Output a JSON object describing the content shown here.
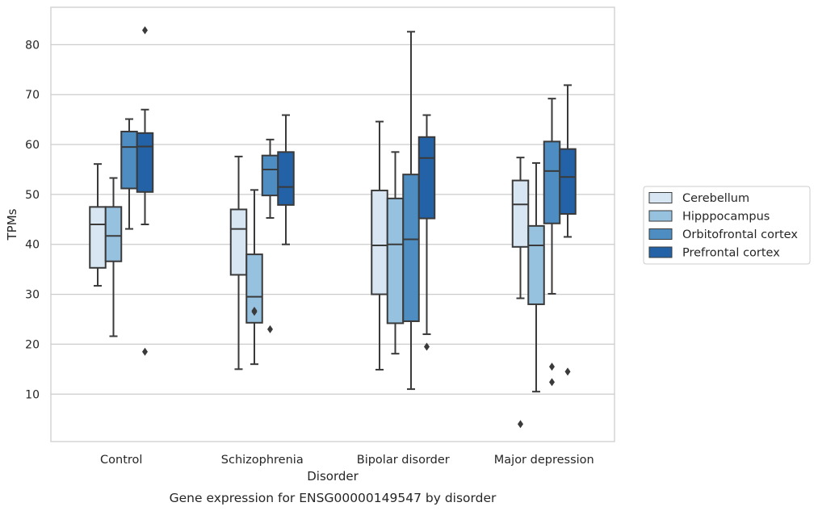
{
  "chart_data": {
    "type": "box",
    "caption": "Gene expression for ENSG00000149547 by disorder",
    "xlabel": "Disorder",
    "ylabel": "TPMs",
    "categories": [
      "Control",
      "Schizophrenia",
      "Bipolar disorder",
      "Major depression"
    ],
    "ylim": [
      0.5,
      87.5
    ],
    "yticks": [
      10,
      20,
      30,
      40,
      50,
      60,
      70,
      80
    ],
    "grid": "horizontal",
    "legend_position": "right",
    "colors": {
      "Cerebellum": "#d8e6f3",
      "Hipppocampus": "#96c1df",
      "Orbitofrontal cortex": "#4d8dc2",
      "Prefrontal cortex": "#2362a7",
      "edge": "#3a3a3a",
      "grid": "#cccccc"
    },
    "series": [
      {
        "name": "Cerebellum",
        "boxes": [
          {
            "whislo": 31.7,
            "q1": 35.3,
            "med": 44.0,
            "q3": 47.5,
            "whishi": 56.1,
            "fliers": []
          },
          {
            "whislo": 15.0,
            "q1": 33.9,
            "med": 43.1,
            "q3": 47.0,
            "whishi": 57.6,
            "fliers": []
          },
          {
            "whislo": 14.9,
            "q1": 30.0,
            "med": 39.8,
            "q3": 50.8,
            "whishi": 64.6,
            "fliers": []
          },
          {
            "whislo": 29.2,
            "q1": 39.5,
            "med": 48.0,
            "q3": 52.8,
            "whishi": 57.4,
            "fliers": [
              4.0
            ]
          }
        ]
      },
      {
        "name": "Hipppocampus",
        "boxes": [
          {
            "whislo": 21.6,
            "q1": 36.6,
            "med": 41.7,
            "q3": 47.5,
            "whishi": 53.3,
            "fliers": []
          },
          {
            "whislo": 16.0,
            "q1": 24.3,
            "med": 29.5,
            "q3": 38.0,
            "whishi": 50.9,
            "fliers": [
              26.5,
              26.7
            ]
          },
          {
            "whislo": 18.1,
            "q1": 24.2,
            "med": 40.0,
            "q3": 49.2,
            "whishi": 58.5,
            "fliers": []
          },
          {
            "whislo": 10.5,
            "q1": 28.0,
            "med": 39.8,
            "q3": 43.7,
            "whishi": 56.3,
            "fliers": []
          }
        ]
      },
      {
        "name": "Orbitofrontal cortex",
        "boxes": [
          {
            "whislo": 43.1,
            "q1": 51.2,
            "med": 59.5,
            "q3": 62.6,
            "whishi": 65.1,
            "fliers": []
          },
          {
            "whislo": 45.3,
            "q1": 49.8,
            "med": 55.0,
            "q3": 57.8,
            "whishi": 61.0,
            "fliers": [
              23.0
            ]
          },
          {
            "whislo": 11.0,
            "q1": 24.6,
            "med": 41.0,
            "q3": 54.0,
            "whishi": 82.6,
            "fliers": []
          },
          {
            "whislo": 30.1,
            "q1": 44.2,
            "med": 54.7,
            "q3": 60.6,
            "whishi": 69.2,
            "fliers": [
              12.4,
              15.5
            ]
          }
        ]
      },
      {
        "name": "Prefrontal cortex",
        "boxes": [
          {
            "whislo": 44.0,
            "q1": 50.5,
            "med": 59.6,
            "q3": 62.3,
            "whishi": 67.0,
            "fliers": [
              18.5,
              82.9
            ]
          },
          {
            "whislo": 40.0,
            "q1": 47.9,
            "med": 51.5,
            "q3": 58.5,
            "whishi": 65.9,
            "fliers": []
          },
          {
            "whislo": 22.0,
            "q1": 45.2,
            "med": 57.3,
            "q3": 61.5,
            "whishi": 65.9,
            "fliers": [
              19.5
            ]
          },
          {
            "whislo": 41.5,
            "q1": 46.1,
            "med": 53.5,
            "q3": 59.1,
            "whishi": 71.9,
            "fliers": [
              14.5
            ]
          }
        ]
      }
    ]
  }
}
